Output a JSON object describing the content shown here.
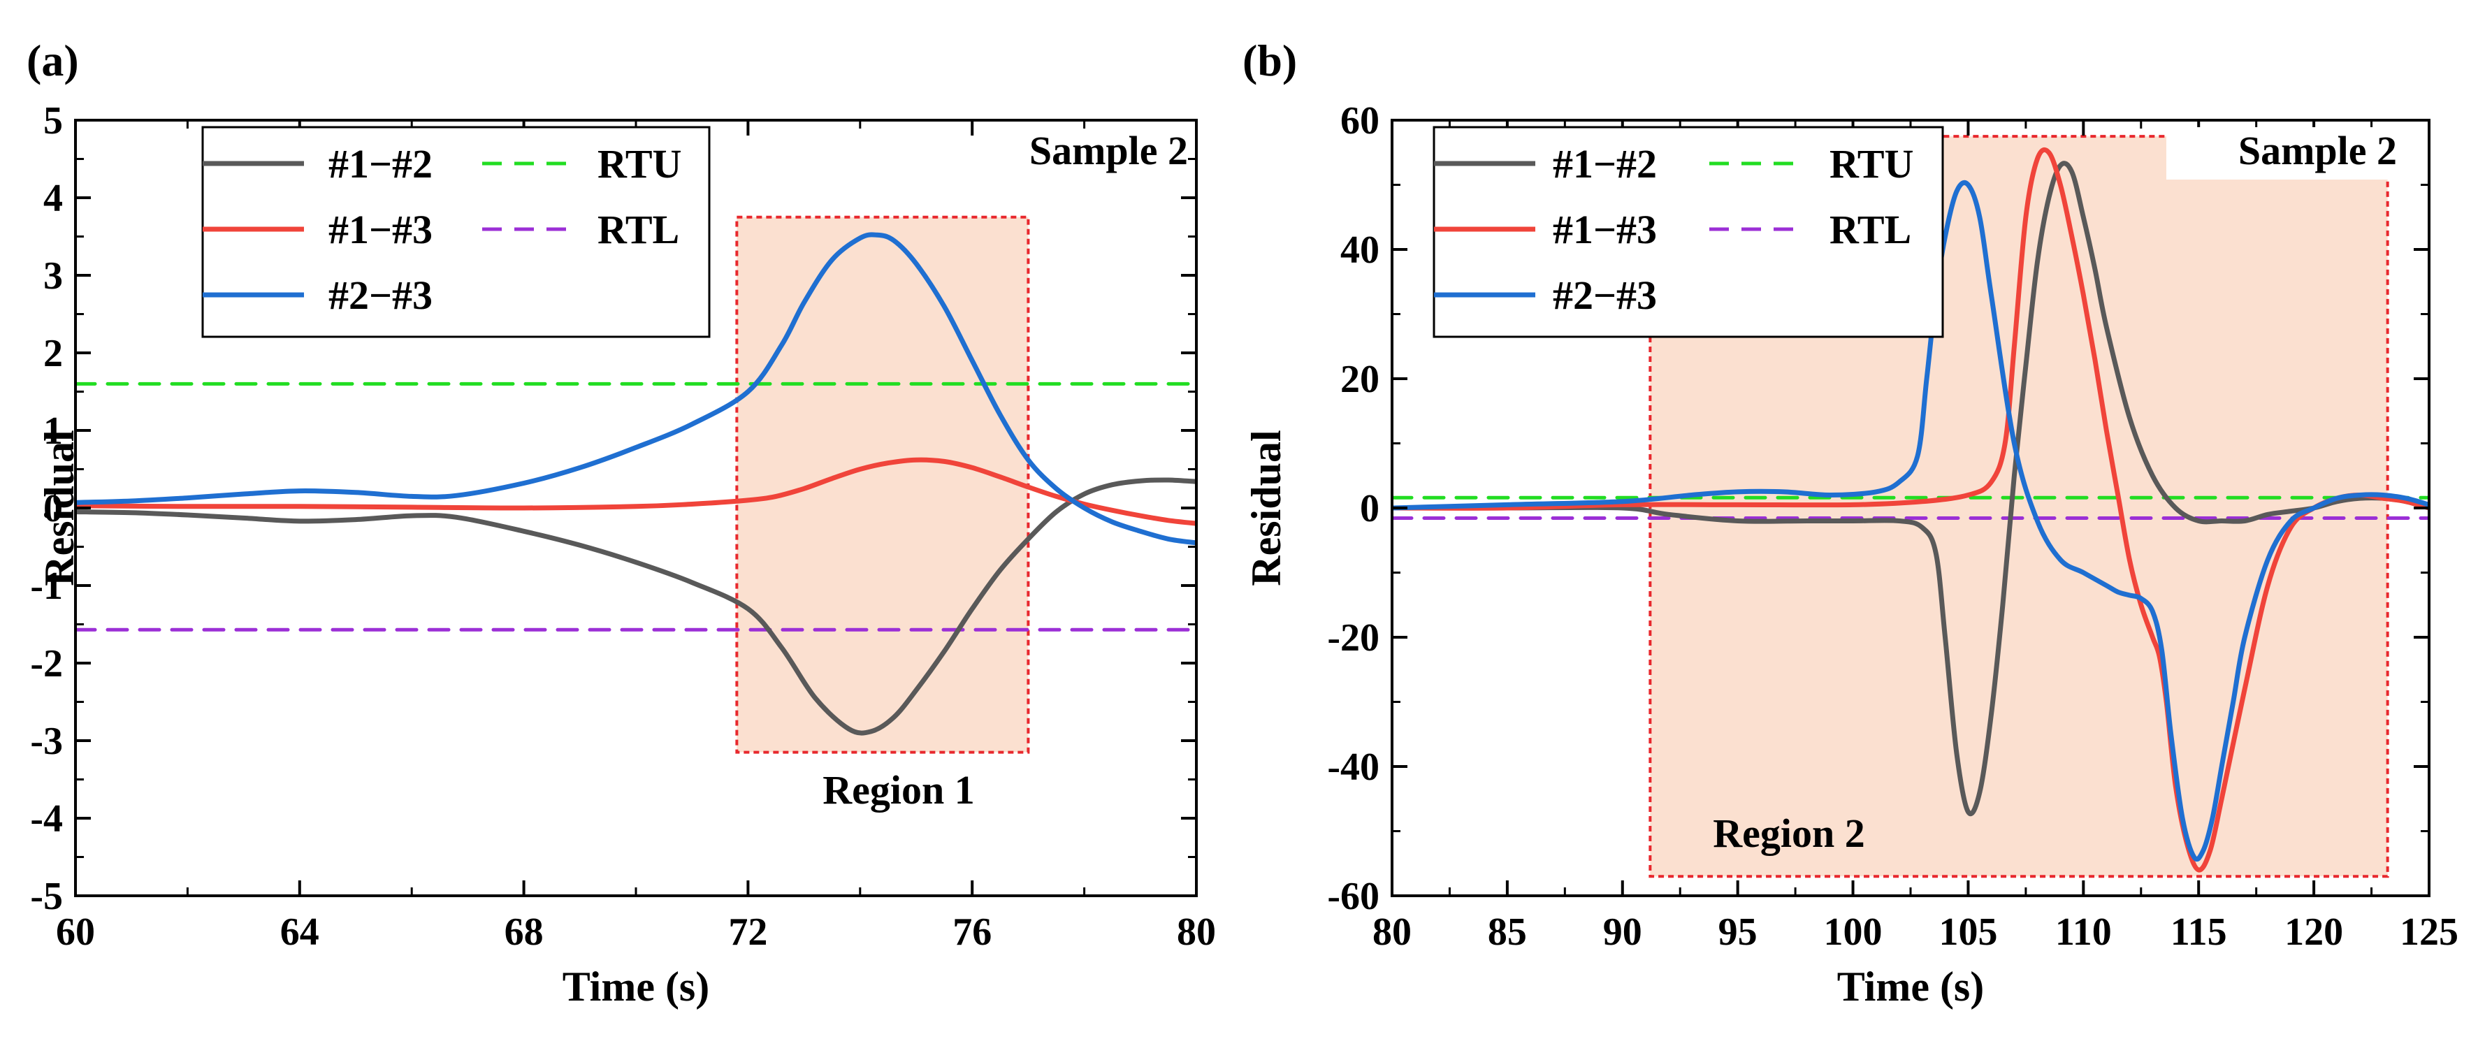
{
  "chart_data": [
    {
      "panel_label": "(a)",
      "type": "line",
      "xlabel": "Time (s)",
      "ylabel": "Residual",
      "xlim": [
        60,
        80
      ],
      "ylim": [
        -5,
        5
      ],
      "xticks": [
        60,
        64,
        68,
        72,
        76,
        80
      ],
      "yticks": [
        -5,
        -4,
        -3,
        -2,
        -1,
        0,
        1,
        2,
        3,
        4,
        5
      ],
      "annotation": "Sample 2",
      "legend_position": "top-left",
      "series": [
        {
          "name": "#1−#2",
          "color": "#595959",
          "style": "solid",
          "x": [
            60,
            61,
            62,
            63,
            64,
            65,
            66,
            66.8,
            68,
            69,
            70,
            71,
            72,
            72.6,
            73.2,
            73.8,
            74.2,
            74.6,
            75,
            75.5,
            76,
            76.5,
            77,
            77.5,
            78,
            78.5,
            79,
            79.5,
            80
          ],
          "y": [
            -0.05,
            -0.06,
            -0.09,
            -0.13,
            -0.17,
            -0.15,
            -0.1,
            -0.12,
            -0.3,
            -0.48,
            -0.7,
            -0.96,
            -1.3,
            -1.8,
            -2.45,
            -2.85,
            -2.88,
            -2.7,
            -2.35,
            -1.85,
            -1.3,
            -0.8,
            -0.4,
            -0.05,
            0.18,
            0.3,
            0.35,
            0.36,
            0.34
          ]
        },
        {
          "name": "#1−#3",
          "color": "#f0443a",
          "style": "solid",
          "x": [
            60,
            62,
            64,
            66,
            68,
            70,
            71,
            72,
            72.5,
            73,
            73.5,
            74,
            74.5,
            75,
            75.5,
            76,
            76.5,
            77,
            77.5,
            78,
            78.5,
            79,
            79.5,
            80
          ],
          "y": [
            0.03,
            0.02,
            0.02,
            0.01,
            0.0,
            0.02,
            0.05,
            0.1,
            0.15,
            0.25,
            0.38,
            0.5,
            0.58,
            0.62,
            0.6,
            0.52,
            0.4,
            0.27,
            0.15,
            0.05,
            -0.03,
            -0.1,
            -0.16,
            -0.2
          ]
        },
        {
          "name": "#2−#3",
          "color": "#1f6fd1",
          "style": "solid",
          "x": [
            60,
            61,
            62,
            63,
            64,
            65,
            66,
            66.8,
            68,
            69,
            70,
            71,
            72,
            72.6,
            73,
            73.5,
            74,
            74.3,
            74.6,
            75,
            75.5,
            76,
            76.5,
            77,
            77.5,
            78,
            78.5,
            79,
            79.5,
            80
          ],
          "y": [
            0.07,
            0.09,
            0.13,
            0.18,
            0.22,
            0.2,
            0.15,
            0.16,
            0.32,
            0.52,
            0.78,
            1.08,
            1.5,
            2.1,
            2.65,
            3.2,
            3.48,
            3.52,
            3.45,
            3.15,
            2.6,
            1.9,
            1.2,
            0.62,
            0.25,
            0.0,
            -0.18,
            -0.3,
            -0.4,
            -0.45
          ]
        },
        {
          "name": "RTU",
          "color": "#22dd22",
          "style": "dashed",
          "x": [
            60,
            80
          ],
          "y": [
            1.6,
            1.6
          ]
        },
        {
          "name": "RTL",
          "color": "#9b2fd6",
          "style": "dashed",
          "x": [
            60,
            80
          ],
          "y": [
            -1.57,
            -1.57
          ]
        }
      ],
      "region": {
        "label": "Region 1",
        "x": [
          71.8,
          77
        ],
        "y": [
          -3.15,
          3.75
        ]
      }
    },
    {
      "panel_label": "(b)",
      "type": "line",
      "xlabel": "Time (s)",
      "ylabel": "Residual",
      "xlim": [
        80,
        125
      ],
      "ylim": [
        -60,
        60
      ],
      "xticks": [
        80,
        85,
        90,
        95,
        100,
        105,
        110,
        115,
        120,
        125
      ],
      "yticks": [
        -60,
        -40,
        -20,
        0,
        20,
        40,
        60
      ],
      "annotation": "Sample 2",
      "legend_position": "top-left",
      "series": [
        {
          "name": "#1−#2",
          "color": "#595959",
          "style": "solid",
          "x": [
            80,
            85,
            90,
            92,
            95,
            98,
            100,
            102,
            103,
            103.6,
            104,
            104.5,
            105,
            105.5,
            106,
            106.5,
            107,
            107.5,
            108,
            108.5,
            109,
            109.5,
            110,
            110.5,
            111,
            112,
            113,
            114,
            115,
            116,
            117,
            118,
            119,
            120,
            121,
            122,
            123,
            124,
            125
          ],
          "y": [
            0,
            0,
            0,
            -1,
            -2,
            -2,
            -2,
            -2,
            -3,
            -7,
            -20,
            -38,
            -47,
            -44,
            -32,
            -15,
            5,
            22,
            38,
            48,
            53,
            52,
            45,
            37,
            28,
            14,
            5,
            0,
            -2,
            -2,
            -2,
            -1,
            -0.5,
            0,
            1,
            1.5,
            1.5,
            1,
            0
          ]
        },
        {
          "name": "#1−#3",
          "color": "#f0443a",
          "style": "solid",
          "x": [
            80,
            85,
            90,
            95,
            100,
            103,
            105,
            106,
            106.6,
            107,
            107.5,
            108,
            108.5,
            109,
            109.5,
            110,
            110.5,
            111,
            111.5,
            112,
            112.5,
            113,
            113.3,
            113.6,
            114,
            114.5,
            115,
            115.5,
            116,
            117,
            118,
            119,
            120,
            121,
            122,
            123,
            124,
            125
          ],
          "y": [
            0,
            0,
            0.5,
            0.5,
            0.5,
            1,
            2,
            4,
            10,
            25,
            45,
            54,
            55,
            50,
            42,
            33,
            23,
            12,
            2,
            -8,
            -15,
            -20,
            -23,
            -30,
            -43,
            -52,
            -56,
            -53,
            -45,
            -28,
            -12,
            -3,
            0,
            1.5,
            2,
            1.5,
            1,
            0
          ]
        },
        {
          "name": "#2−#3",
          "color": "#1f6fd1",
          "style": "solid",
          "x": [
            80,
            85,
            90,
            93,
            95,
            97,
            99,
            101,
            102,
            102.8,
            103.2,
            103.6,
            104,
            104.5,
            105,
            105.5,
            106,
            107,
            108,
            109,
            110,
            111,
            111.5,
            112,
            112.5,
            113,
            113.4,
            113.8,
            114.3,
            114.8,
            115.2,
            115.6,
            116,
            116.5,
            117,
            118,
            119,
            120,
            121,
            122,
            123,
            124,
            125
          ],
          "y": [
            0,
            0.5,
            1,
            2,
            2.5,
            2.5,
            2,
            2.5,
            4,
            8,
            20,
            33,
            42,
            49,
            50,
            45,
            33,
            10,
            -2,
            -8,
            -10,
            -12,
            -13,
            -13.5,
            -14,
            -16,
            -22,
            -35,
            -48,
            -54,
            -53,
            -48,
            -40,
            -30,
            -20,
            -8,
            -2,
            0,
            1.5,
            2,
            2,
            1.5,
            0.5
          ]
        },
        {
          "name": "RTU",
          "color": "#22dd22",
          "style": "dashed",
          "x": [
            80,
            125
          ],
          "y": [
            1.6,
            1.6
          ]
        },
        {
          "name": "RTL",
          "color": "#9b2fd6",
          "style": "dashed",
          "x": [
            80,
            125
          ],
          "y": [
            -1.57,
            -1.57
          ]
        }
      ],
      "region": {
        "label": "Region 2",
        "x": [
          91.2,
          123.2
        ],
        "y": [
          -57,
          57.5
        ]
      }
    }
  ]
}
